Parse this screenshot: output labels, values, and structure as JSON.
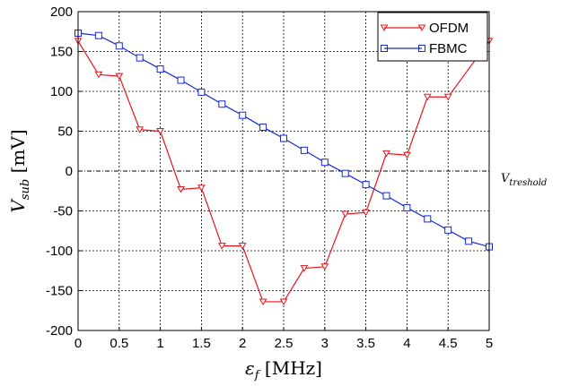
{
  "chart_data": {
    "type": "line",
    "xlabel_main": "ε",
    "xlabel_sub": "f",
    "xlabel_unit": " [MHz]",
    "ylabel_main": "V",
    "ylabel_sub": "sub",
    "ylabel_unit": " [mV]",
    "xlim": [
      0,
      5
    ],
    "ylim": [
      -200,
      200
    ],
    "xticks": [
      0,
      0.5,
      1,
      1.5,
      2,
      2.5,
      3,
      3.5,
      4,
      4.5,
      5
    ],
    "yticks": [
      -200,
      -150,
      -100,
      -50,
      0,
      50,
      100,
      150,
      200
    ],
    "grid": true,
    "legend_position": "top-right",
    "annotation_main": "V",
    "annotation_sub": "treshold",
    "threshold_y": 0,
    "series": [
      {
        "name": "OFDM",
        "color": "#e8141c",
        "marker": "triangle-down",
        "x": [
          0,
          0.25,
          0.5,
          0.75,
          1,
          1.25,
          1.5,
          1.75,
          2,
          2.25,
          2.5,
          2.75,
          3,
          3.25,
          3.5,
          3.75,
          4,
          4.25,
          4.5,
          5
        ],
        "y": [
          163,
          121,
          119,
          52,
          50,
          -23,
          -21,
          -94,
          -94,
          -164,
          -164,
          -122,
          -120,
          -54,
          -52,
          22,
          20,
          93,
          93,
          163
        ]
      },
      {
        "name": "FBMC",
        "color": "#1428d8",
        "marker": "square",
        "x": [
          0,
          0.25,
          0.5,
          0.75,
          1,
          1.25,
          1.5,
          1.75,
          2,
          2.25,
          2.5,
          2.75,
          3,
          3.25,
          3.5,
          3.75,
          4,
          4.25,
          4.5,
          4.75,
          5
        ],
        "y": [
          173,
          170,
          157,
          142,
          128,
          114,
          99,
          84,
          70,
          55,
          41,
          26,
          11,
          -3,
          -17,
          -31,
          -46,
          -60,
          -74,
          -88,
          -95
        ]
      }
    ]
  }
}
